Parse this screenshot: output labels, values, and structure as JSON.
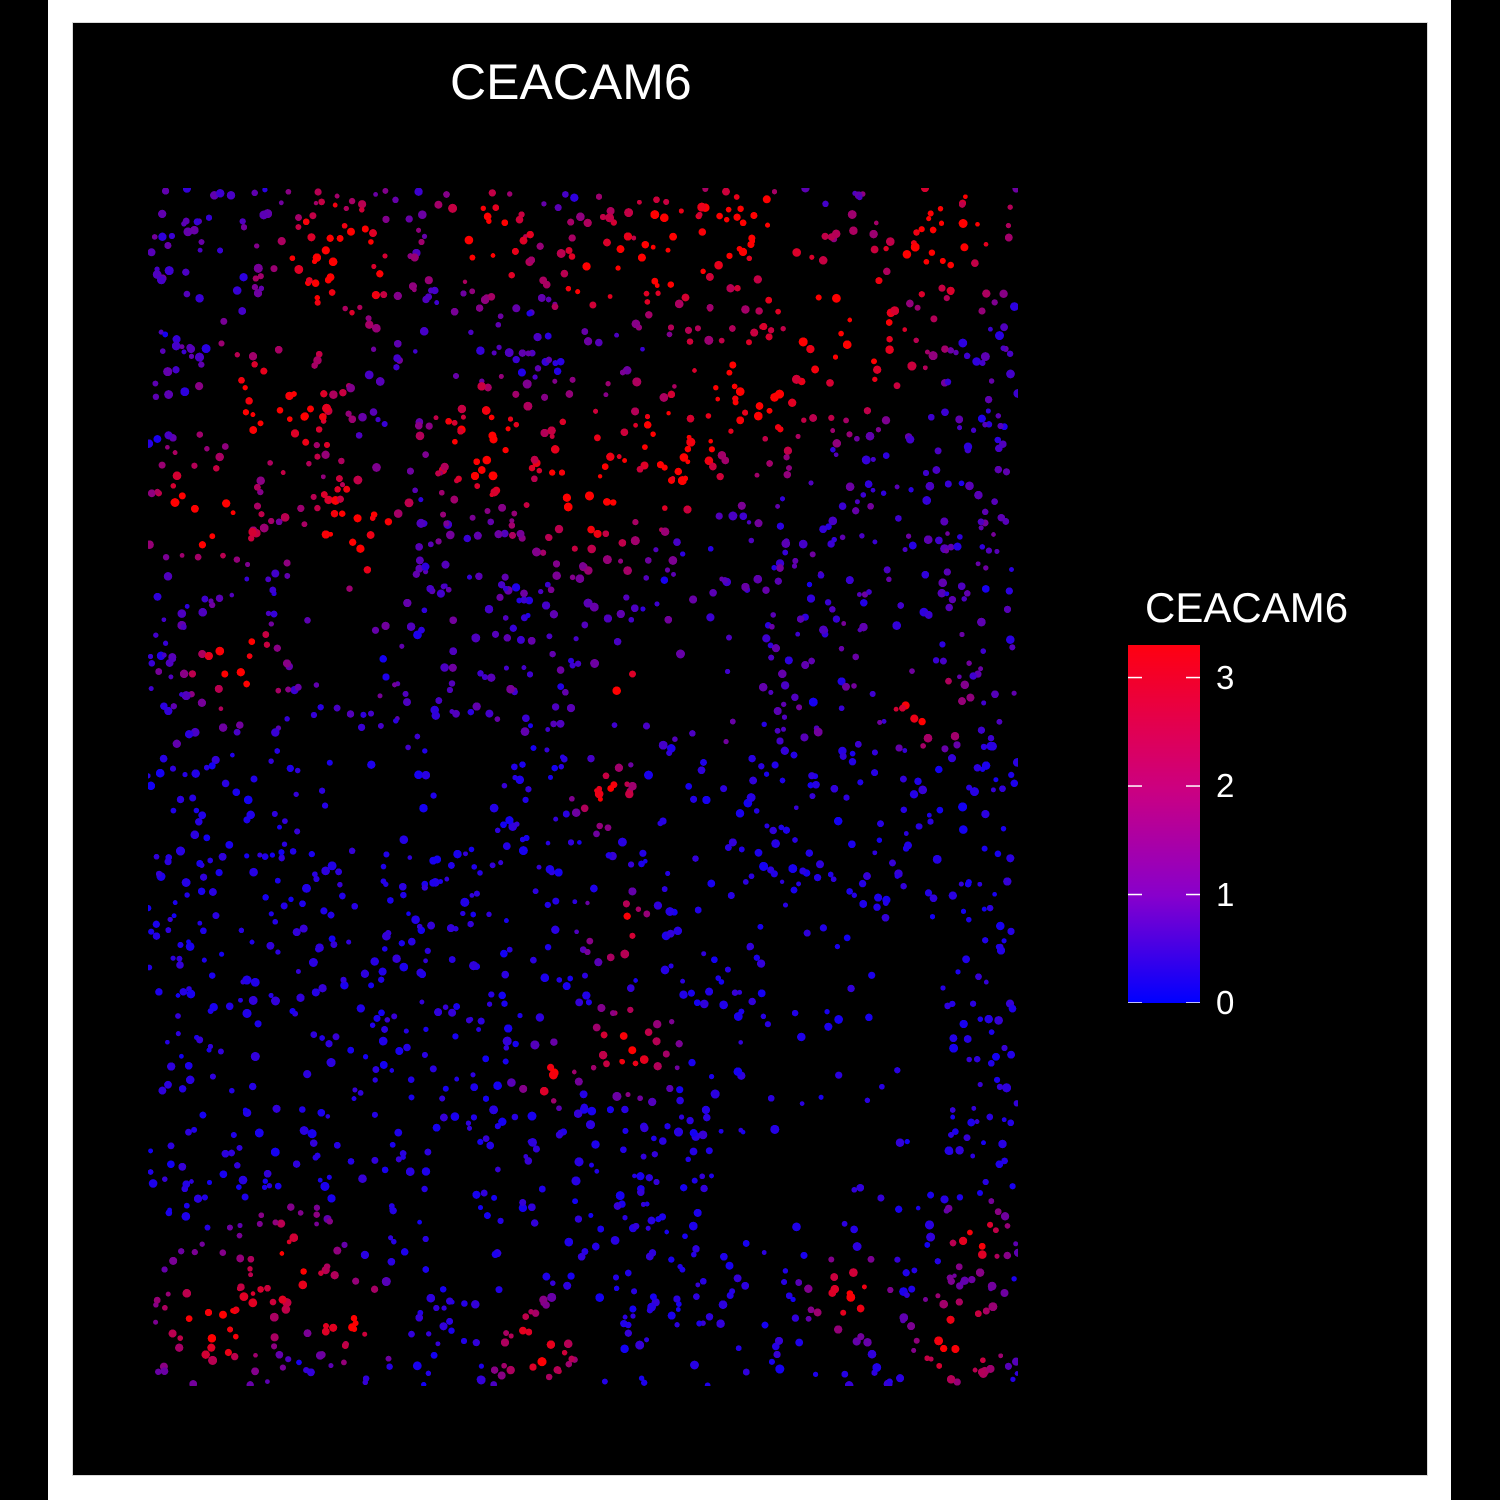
{
  "chart_data": {
    "type": "scatter",
    "title": "CEACAM6",
    "xlabel": "",
    "ylabel": "",
    "background": "#000000",
    "colorbar": {
      "title": "CEACAM6",
      "range": [
        0,
        3.3
      ],
      "ticks": [
        "0",
        "1",
        "2",
        "3"
      ],
      "tick_values": [
        0,
        1,
        2,
        3
      ],
      "low_color": "#0000ff",
      "high_color": "#ff0000",
      "placement": "right"
    },
    "grid": false,
    "axes_visible": false
  }
}
